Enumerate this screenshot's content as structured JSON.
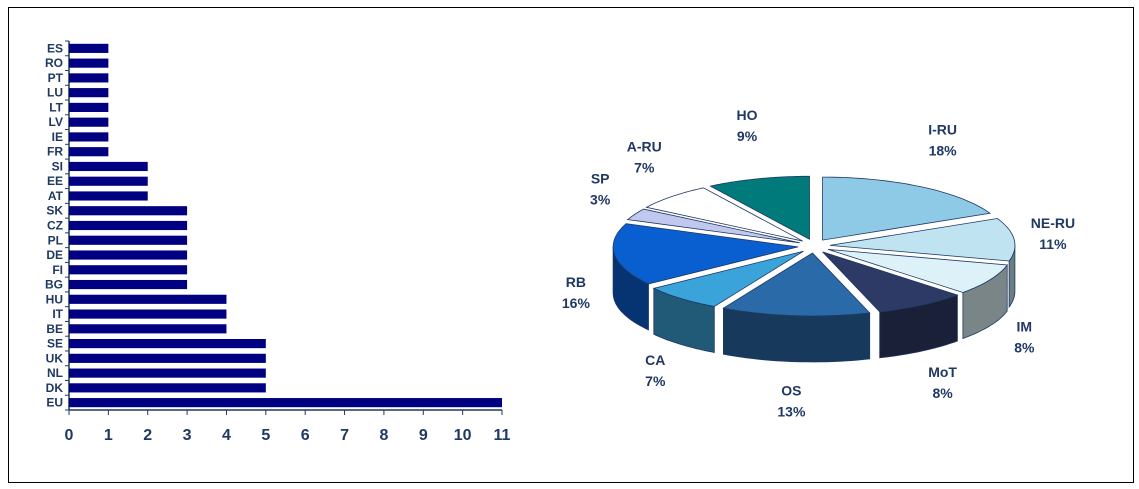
{
  "chart_data": [
    {
      "type": "bar",
      "orientation": "horizontal",
      "categories": [
        "ES",
        "RO",
        "PT",
        "LU",
        "LT",
        "LV",
        "IE",
        "FR",
        "SI",
        "EE",
        "AT",
        "SK",
        "CZ",
        "PL",
        "DE",
        "FI",
        "BG",
        "HU",
        "IT",
        "BE",
        "SE",
        "UK",
        "NL",
        "DK",
        "EU"
      ],
      "values": [
        1,
        1,
        1,
        1,
        1,
        1,
        1,
        1,
        2,
        2,
        2,
        3,
        3,
        3,
        3,
        3,
        3,
        4,
        4,
        4,
        5,
        5,
        5,
        5,
        11
      ],
      "xlim": [
        0,
        11
      ],
      "xticks": [
        "0",
        "1",
        "2",
        "3",
        "4",
        "5",
        "6",
        "7",
        "8",
        "9",
        "10",
        "11"
      ],
      "title": "",
      "xlabel": "",
      "ylabel": "",
      "grid": false,
      "colors": {
        "bar": "#000080",
        "text": "#1f3864"
      }
    },
    {
      "type": "pie",
      "style": "3d-exploded",
      "slices": [
        {
          "label": "I-RU",
          "value": 18,
          "pct": "18%",
          "color": "#8ecae6"
        },
        {
          "label": "NE-RU",
          "value": 11,
          "pct": "11%",
          "color": "#bfe3f0"
        },
        {
          "label": "IM",
          "value": 8,
          "pct": "8%",
          "color": "#ddf1f8"
        },
        {
          "label": "MoT",
          "value": 8,
          "pct": "8%",
          "color": "#2e3a66"
        },
        {
          "label": "OS",
          "value": 13,
          "pct": "13%",
          "color": "#2a6aa8"
        },
        {
          "label": "CA",
          "value": 7,
          "pct": "7%",
          "color": "#3aa3d9"
        },
        {
          "label": "RB",
          "value": 16,
          "pct": "16%",
          "color": "#0a5fd0"
        },
        {
          "label": "SP",
          "value": 3,
          "pct": "3%",
          "color": "#c0c8f0"
        },
        {
          "label": "A-RU",
          "value": 7,
          "pct": "7%",
          "color": "#ffffff"
        },
        {
          "label": "HO",
          "value": 9,
          "pct": "9%",
          "color": "#007a7a"
        }
      ],
      "legend": "none"
    }
  ]
}
